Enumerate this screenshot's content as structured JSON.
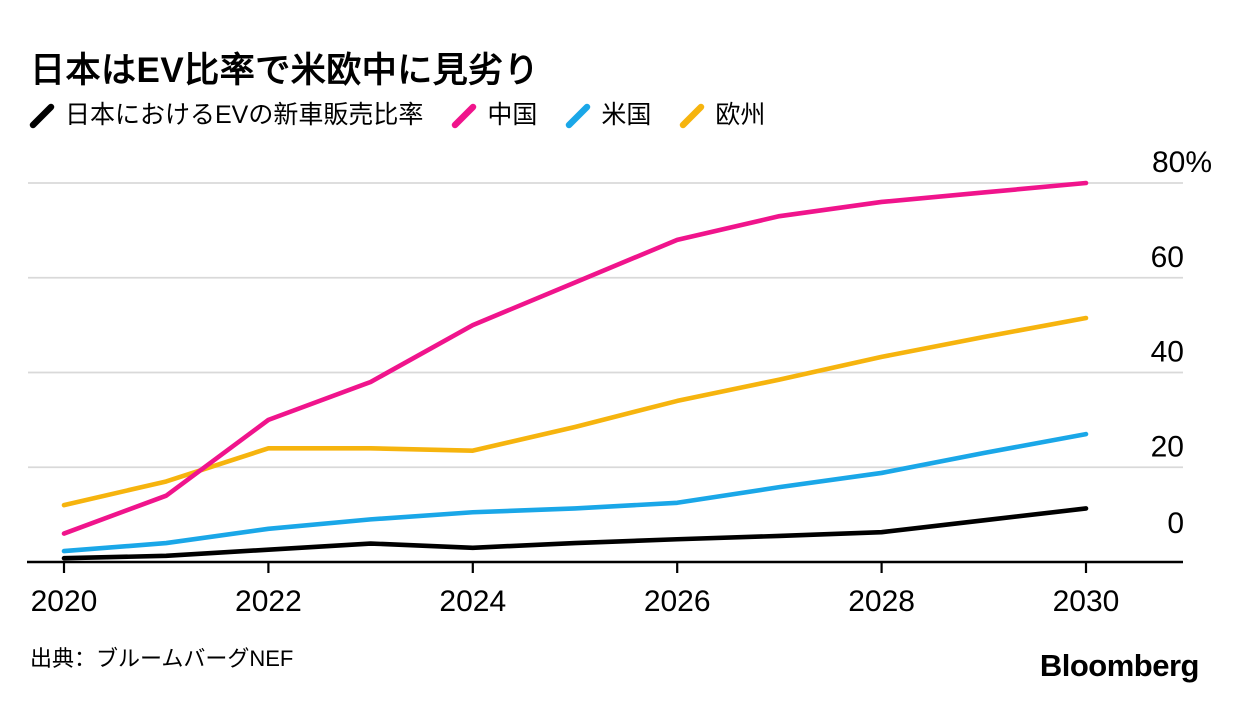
{
  "header": {
    "title": "日本はEV比率で米欧中に見劣り"
  },
  "footer": {
    "source": "出典：ブルームバーグNEF",
    "logo": "Bloomberg"
  },
  "colors": {
    "japan": "#000000",
    "china": "#f0148c",
    "us": "#1aa7e8",
    "europe": "#f6b40e",
    "grid": "#d9d9d9",
    "axis": "#000000",
    "text": "#000000",
    "background": "#ffffff"
  },
  "chart_data": {
    "type": "line",
    "title": "日本はEV比率で米欧中に見劣り",
    "x": [
      2020,
      2021,
      2022,
      2023,
      2024,
      2025,
      2026,
      2027,
      2028,
      2029,
      2030
    ],
    "x_ticks": [
      2020,
      2022,
      2024,
      2026,
      2028,
      2030
    ],
    "x_tick_labels": [
      "2020",
      "2022",
      "2024",
      "2026",
      "2028",
      "2030"
    ],
    "y_ticks": [
      0,
      20,
      40,
      60,
      80
    ],
    "y_tick_labels": [
      "0",
      "20",
      "40",
      "60",
      "80%"
    ],
    "ylim": [
      0,
      80
    ],
    "unit": "%",
    "grid": "horizontal",
    "legend_position": "top",
    "series": [
      {
        "key": "japan",
        "name": "日本におけるEVの新車販売比率",
        "color": "#000000",
        "values": [
          0.8,
          1.3,
          2.6,
          3.9,
          3.0,
          4.0,
          4.8,
          5.5,
          6.3,
          8.8,
          11.3
        ]
      },
      {
        "key": "china",
        "name": "中国",
        "color": "#f0148c",
        "values": [
          6,
          14,
          30,
          38,
          50,
          59,
          68,
          73,
          76,
          78,
          80
        ]
      },
      {
        "key": "us",
        "name": "米国",
        "color": "#1aa7e8",
        "values": [
          2.3,
          4,
          7,
          9,
          10.5,
          11.3,
          12.5,
          15.8,
          18.8,
          23,
          27
        ]
      },
      {
        "key": "europe",
        "name": "欧州",
        "color": "#f6b40e",
        "values": [
          12,
          17,
          24,
          24,
          23.5,
          28.5,
          34,
          38.5,
          43.3,
          47.5,
          51.5
        ]
      }
    ],
    "draw_order": [
      "europe",
      "us",
      "china",
      "japan"
    ]
  }
}
